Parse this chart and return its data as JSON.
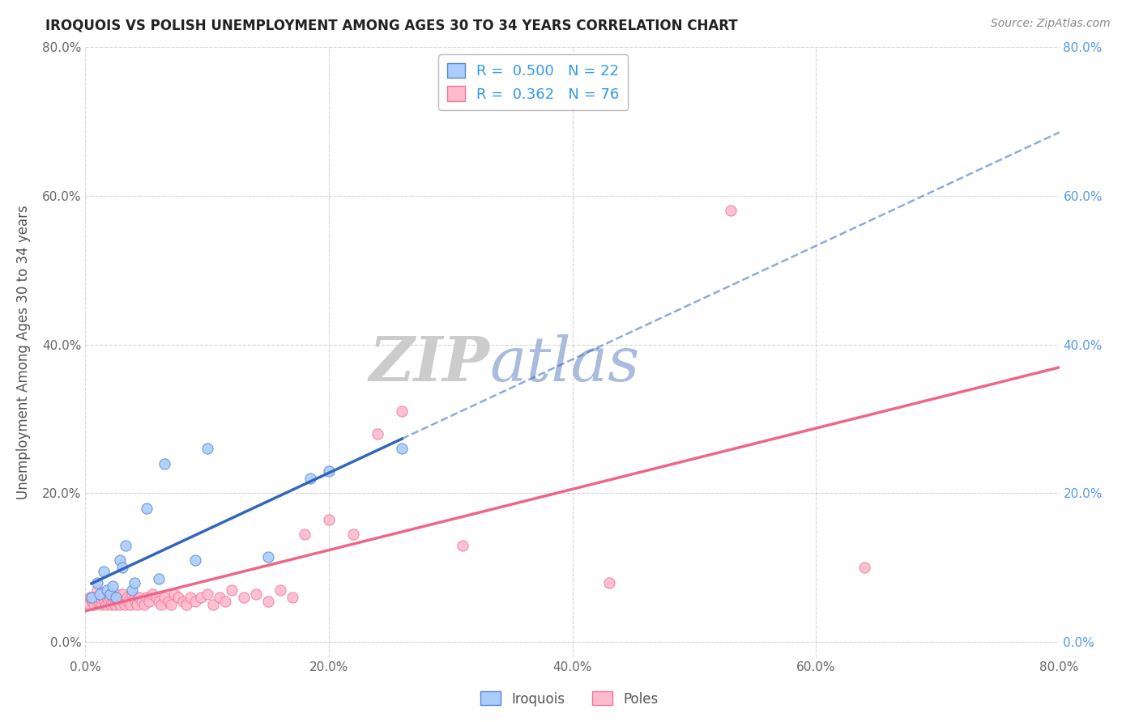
{
  "title": "IROQUOIS VS POLISH UNEMPLOYMENT AMONG AGES 30 TO 34 YEARS CORRELATION CHART",
  "source": "Source: ZipAtlas.com",
  "ylabel": "Unemployment Among Ages 30 to 34 years",
  "xlim": [
    0.0,
    0.8
  ],
  "ylim": [
    -0.02,
    0.8
  ],
  "xticks": [
    0.0,
    0.2,
    0.4,
    0.6,
    0.8
  ],
  "yticks": [
    0.0,
    0.2,
    0.4,
    0.6,
    0.8
  ],
  "xticklabels": [
    "0.0%",
    "20.0%",
    "40.0%",
    "60.0%",
    "80.0%"
  ],
  "yticklabels": [
    "0.0%",
    "20.0%",
    "40.0%",
    "60.0%",
    "80.0%"
  ],
  "right_yticklabels": [
    "0.0%",
    "20.0%",
    "40.0%",
    "60.0%",
    "80.0%"
  ],
  "iroquois_color": "#aaccff",
  "poles_color": "#ffbbcc",
  "iroquois_edge_color": "#5588cc",
  "poles_edge_color": "#ee7799",
  "iroquois_line_color": "#3366bb",
  "poles_line_color": "#ee6688",
  "legend_iroquois_label": "Iroquois",
  "legend_poles_label": "Poles",
  "R_iroquois": "0.500",
  "N_iroquois": "22",
  "R_poles": "0.362",
  "N_poles": "76",
  "background_color": "#ffffff",
  "grid_color": "#cccccc",
  "iroquois_x": [
    0.005,
    0.01,
    0.012,
    0.015,
    0.018,
    0.02,
    0.022,
    0.025,
    0.028,
    0.03,
    0.033,
    0.038,
    0.04,
    0.05,
    0.06,
    0.065,
    0.09,
    0.1,
    0.15,
    0.185,
    0.2,
    0.26
  ],
  "iroquois_y": [
    0.06,
    0.08,
    0.065,
    0.095,
    0.07,
    0.065,
    0.075,
    0.06,
    0.11,
    0.1,
    0.13,
    0.07,
    0.08,
    0.18,
    0.085,
    0.24,
    0.11,
    0.26,
    0.115,
    0.22,
    0.23,
    0.26
  ],
  "poles_x": [
    0.002,
    0.003,
    0.004,
    0.005,
    0.006,
    0.007,
    0.008,
    0.009,
    0.01,
    0.01,
    0.011,
    0.012,
    0.013,
    0.014,
    0.015,
    0.016,
    0.017,
    0.018,
    0.019,
    0.02,
    0.021,
    0.022,
    0.023,
    0.024,
    0.025,
    0.026,
    0.027,
    0.028,
    0.03,
    0.031,
    0.032,
    0.034,
    0.035,
    0.037,
    0.038,
    0.04,
    0.041,
    0.042,
    0.044,
    0.046,
    0.048,
    0.05,
    0.052,
    0.055,
    0.058,
    0.06,
    0.062,
    0.065,
    0.068,
    0.07,
    0.073,
    0.076,
    0.08,
    0.083,
    0.086,
    0.09,
    0.095,
    0.1,
    0.105,
    0.11,
    0.115,
    0.12,
    0.13,
    0.14,
    0.15,
    0.16,
    0.17,
    0.18,
    0.2,
    0.22,
    0.24,
    0.26,
    0.31,
    0.43,
    0.64,
    0.53
  ],
  "poles_y": [
    0.055,
    0.05,
    0.06,
    0.06,
    0.055,
    0.05,
    0.06,
    0.055,
    0.06,
    0.07,
    0.055,
    0.06,
    0.05,
    0.065,
    0.06,
    0.055,
    0.05,
    0.06,
    0.055,
    0.06,
    0.05,
    0.055,
    0.06,
    0.05,
    0.065,
    0.055,
    0.06,
    0.05,
    0.065,
    0.055,
    0.05,
    0.06,
    0.055,
    0.05,
    0.065,
    0.06,
    0.055,
    0.05,
    0.06,
    0.055,
    0.05,
    0.06,
    0.055,
    0.065,
    0.06,
    0.055,
    0.05,
    0.06,
    0.055,
    0.05,
    0.065,
    0.06,
    0.055,
    0.05,
    0.06,
    0.055,
    0.06,
    0.065,
    0.05,
    0.06,
    0.055,
    0.07,
    0.06,
    0.065,
    0.055,
    0.07,
    0.06,
    0.145,
    0.165,
    0.145,
    0.28,
    0.31,
    0.13,
    0.08,
    0.1,
    0.58
  ],
  "watermark_zip_color": "#cccccc",
  "watermark_atlas_color": "#aabbdd"
}
